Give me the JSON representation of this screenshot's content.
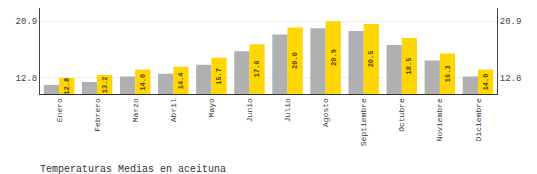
{
  "chart_data": {
    "type": "bar",
    "title": "Temperaturas Medias en aceituna",
    "categories": [
      "Enero",
      "Febrero",
      "Marzo",
      "Abril",
      "Mayo",
      "Junio",
      "Julio",
      "Agosto",
      "Septiembre",
      "Octubre",
      "Noviembre",
      "Diciembre"
    ],
    "series": [
      {
        "color": "#B0B0B0",
        "values": [
          11.8,
          12.2,
          13.0,
          13.4,
          14.7,
          16.6,
          19.0,
          19.9,
          19.5,
          17.5,
          15.3,
          13.0
        ]
      },
      {
        "color": "#FFD700",
        "values": [
          12.8,
          13.2,
          14.0,
          14.4,
          15.7,
          17.6,
          20.0,
          20.9,
          20.5,
          18.5,
          16.3,
          14.0
        ],
        "data_labels": true,
        "value_labels": [
          "12.8",
          "13.2",
          "14.0",
          "14.4",
          "15.7",
          "17.6",
          "20.0",
          "20.9",
          "20.5",
          "18.5",
          "16.3",
          "14.0"
        ]
      }
    ],
    "ylim": [
      10.5,
      22.8
    ],
    "yticks": [
      12.8,
      20.9
    ],
    "y2lim": [
      10.5,
      22.8
    ],
    "y2ticks": [
      12.8,
      20.9
    ],
    "grid": true
  }
}
